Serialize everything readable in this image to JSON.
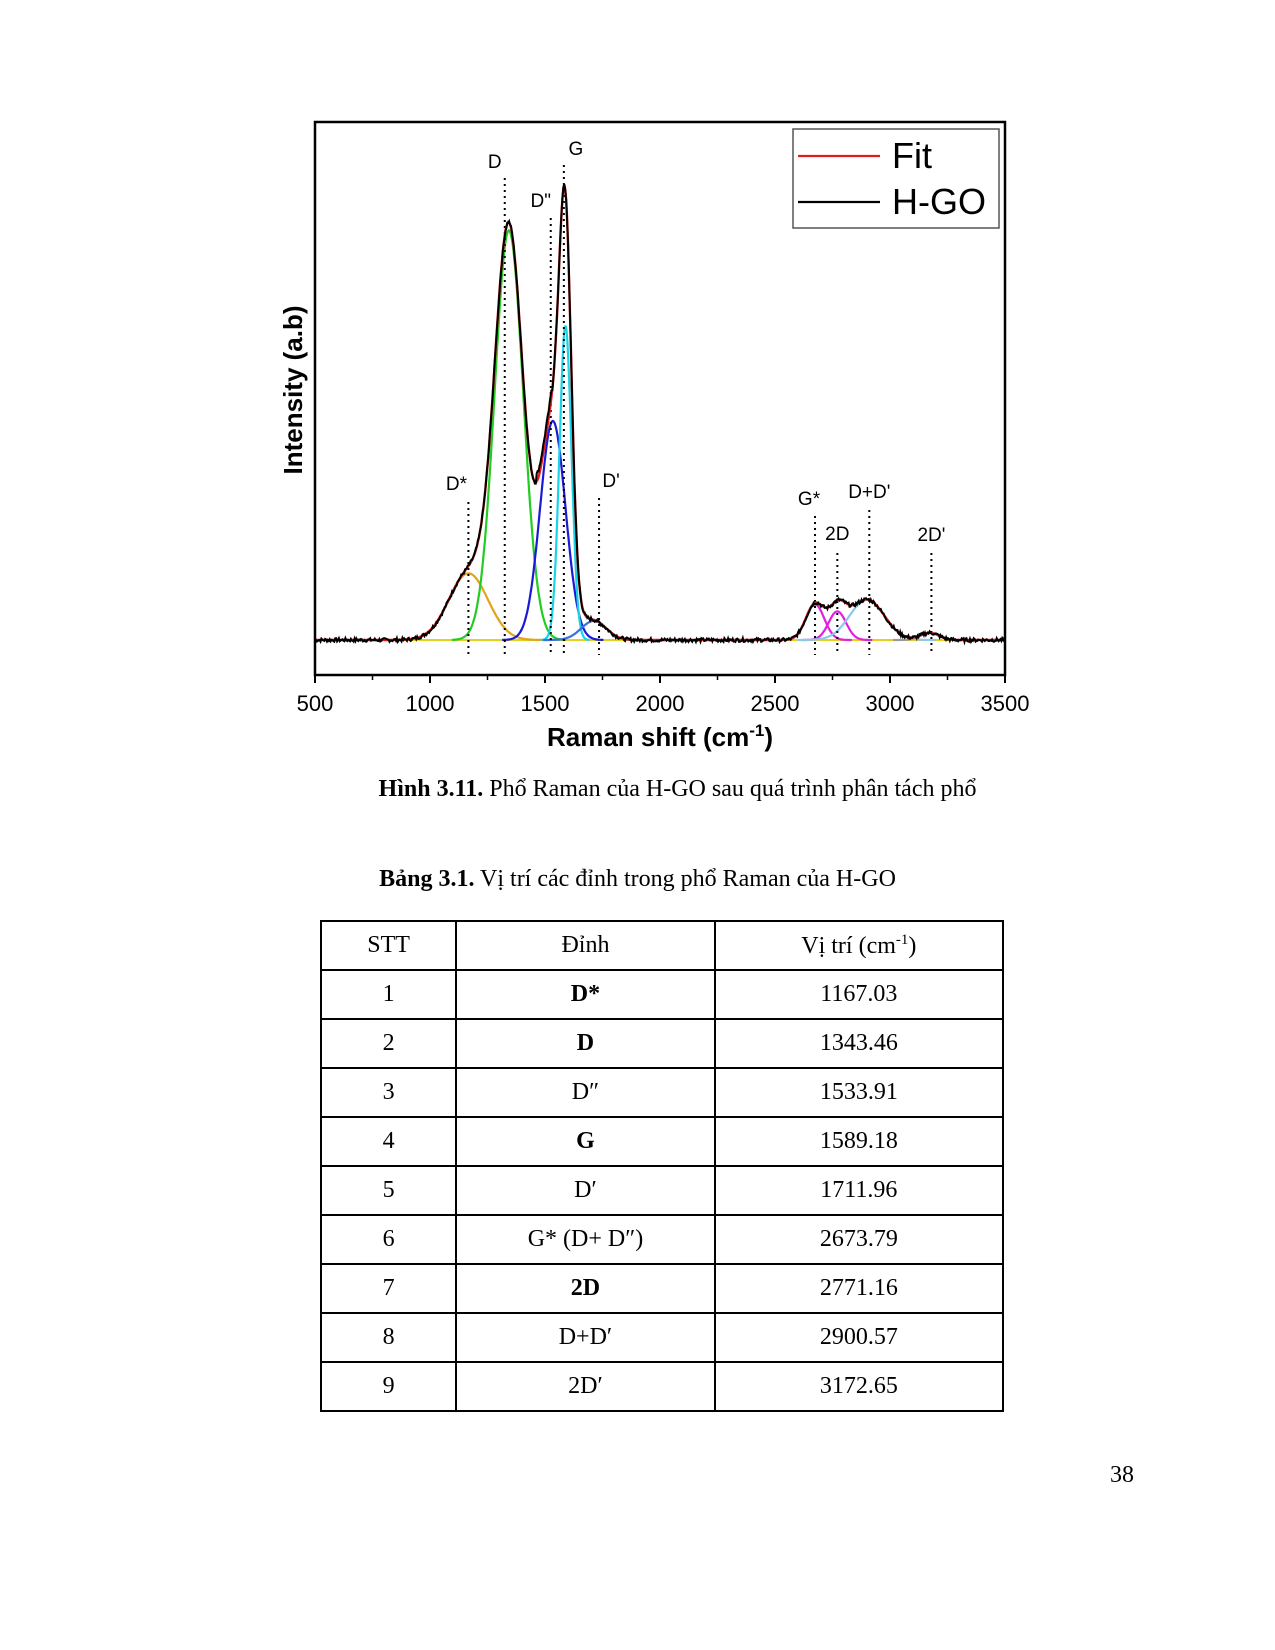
{
  "chart_data": {
    "type": "line",
    "xlabel": "Raman shift (cm",
    "xlabel_sup": "-1",
    "xlabel_end": ")",
    "ylabel": "Intensity (a.b)",
    "xlim": [
      500,
      3500
    ],
    "ylim": [
      0,
      1
    ],
    "x_ticks": [
      500,
      1000,
      1500,
      2000,
      2500,
      3000,
      3500
    ],
    "x_tick_labels": [
      "500",
      "1000",
      "1500",
      "2000",
      "2500",
      "3000",
      "3500"
    ],
    "legend": [
      {
        "name": "Fit",
        "color": "#e31a1c"
      },
      {
        "name": "H-GO",
        "color": "#000000"
      }
    ],
    "legend_position": "top-right",
    "baseline": 0.02,
    "components": [
      {
        "name": "D*",
        "center": 1167,
        "height": 0.14,
        "width": 85,
        "color": "#e0a41c"
      },
      {
        "name": "D",
        "center": 1343,
        "height": 0.86,
        "width": 62,
        "color": "#22cc22"
      },
      {
        "name": "D''",
        "center": 1534,
        "height": 0.46,
        "width": 55,
        "color": "#1a1ad6"
      },
      {
        "name": "G",
        "center": 1589,
        "height": 0.66,
        "width": 26,
        "color": "#19d3e6"
      },
      {
        "name": "D'",
        "center": 1712,
        "height": 0.04,
        "width": 55,
        "color": "#3b6fe0"
      },
      {
        "name": "G*",
        "center": 2674,
        "height": 0.075,
        "width": 40,
        "color": "#e021e0"
      },
      {
        "name": "2D",
        "center": 2771,
        "height": 0.06,
        "width": 38,
        "color": "#e021e0"
      },
      {
        "name": "D+D'",
        "center": 2900,
        "height": 0.085,
        "width": 75,
        "color": "#8ec8e8"
      },
      {
        "name": "2D'",
        "center": 3173,
        "height": 0.015,
        "width": 40,
        "color": "#999999"
      }
    ],
    "peak_markers": [
      {
        "label": "D*",
        "x": 1167
      },
      {
        "label": "D",
        "x": 1325
      },
      {
        "label": "D\"",
        "x": 1525
      },
      {
        "label": "G",
        "x": 1582
      },
      {
        "label": "D'",
        "x": 1735
      },
      {
        "label": "G*",
        "x": 2674
      },
      {
        "label": "2D",
        "x": 2771
      },
      {
        "label": "D+D'",
        "x": 2910
      },
      {
        "label": "2D'",
        "x": 3180
      }
    ]
  },
  "figure_caption": {
    "label": "Hình 3.11.",
    "text": " Phổ Raman của H-GO sau quá trình phân tách phổ"
  },
  "table_caption": {
    "label": "Bảng 3.1.",
    "text": " Vị trí các đỉnh trong phổ Raman của H-GO"
  },
  "table": {
    "headers": [
      "STT",
      "Đỉnh",
      "Vị trí (cm"
    ],
    "header_sup": "-1",
    "header_end": ")",
    "rows": [
      {
        "stt": "1",
        "peak": "D*",
        "position": "1167.03"
      },
      {
        "stt": "2",
        "peak": "D",
        "position": "1343.46"
      },
      {
        "stt": "3",
        "peak": "D″",
        "position": "1533.91"
      },
      {
        "stt": "4",
        "peak": "G",
        "position": "1589.18"
      },
      {
        "stt": "5",
        "peak": "D′",
        "position": "1711.96"
      },
      {
        "stt": "6",
        "peak": "G* (D+ D″)",
        "position": "2673.79"
      },
      {
        "stt": "7",
        "peak": "2D",
        "position": "2771.16"
      },
      {
        "stt": "8",
        "peak": "D+D′",
        "position": "2900.57"
      },
      {
        "stt": "9",
        "peak": "2D′",
        "position": "3172.65"
      }
    ]
  },
  "page_number": "38"
}
